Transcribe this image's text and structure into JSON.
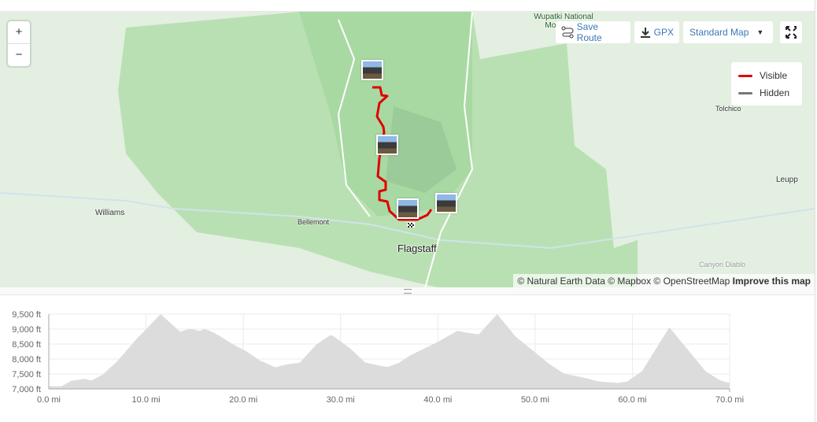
{
  "map": {
    "labels": {
      "wupatki": "Wupatki National Monument",
      "williams": "Williams",
      "bellemont": "Bellemont",
      "flagstaff": "Flagstaff",
      "tolchico": "Tolchico",
      "leupp": "Leupp",
      "canyon_diablo": "Canyon Diablo"
    },
    "zoom_in": "+",
    "zoom_out": "−",
    "toolbar": {
      "save_route": "Save Route",
      "gpx": "GPX",
      "map_style": "Standard Map"
    },
    "legend": [
      {
        "label": "Visible",
        "color": "#e00000"
      },
      {
        "label": "Hidden",
        "color": "#777777"
      }
    ],
    "attribution": {
      "text": "© Natural Earth Data © Mapbox © OpenStreetMap",
      "link": "Improve this map"
    },
    "route_color": "#e00000"
  },
  "chart_data": {
    "type": "area",
    "xlabel": "",
    "ylabel": "",
    "xlim": [
      0,
      70
    ],
    "ylim": [
      7000,
      9500
    ],
    "xticks": [
      0,
      10,
      20,
      30,
      40,
      50,
      60,
      70
    ],
    "xtick_labels": [
      "0.0 mi",
      "10.0 mi",
      "20.0 mi",
      "30.0 mi",
      "40.0 mi",
      "50.0 mi",
      "60.0 mi",
      "70.0 mi"
    ],
    "yticks": [
      7000,
      7500,
      8000,
      8500,
      9000,
      9500
    ],
    "ytick_labels": [
      "7,000 ft",
      "7,500 ft",
      "8,000 ft",
      "8,500 ft",
      "9,000 ft",
      "9,500 ft"
    ],
    "grid": true,
    "fill_color": "#dcdcdc",
    "x": [
      0,
      1.3,
      2.3,
      3.7,
      4.4,
      5.5,
      7,
      9,
      11.5,
      13.5,
      14.5,
      15.5,
      16,
      17,
      19,
      20.3,
      21.7,
      23.3,
      24.5,
      25.8,
      27.5,
      28.9,
      29.2,
      31,
      32.5,
      34,
      34.8,
      36,
      37.2,
      40,
      42,
      43,
      44.2,
      46.1,
      48,
      50,
      51.5,
      53,
      55,
      56.5,
      58.5,
      59.5,
      61,
      63.8,
      67.5,
      69,
      70
    ],
    "y": [
      7090,
      7090,
      7270,
      7340,
      7280,
      7470,
      7910,
      8660,
      9500,
      8910,
      9010,
      8940,
      9010,
      8880,
      8480,
      8260,
      7950,
      7720,
      7820,
      7880,
      8480,
      8790,
      8780,
      8350,
      7890,
      7780,
      7730,
      7870,
      8130,
      8570,
      8940,
      8880,
      8820,
      9500,
      8750,
      8220,
      7820,
      7510,
      7380,
      7250,
      7200,
      7250,
      7600,
      9060,
      7600,
      7290,
      7200
    ]
  }
}
